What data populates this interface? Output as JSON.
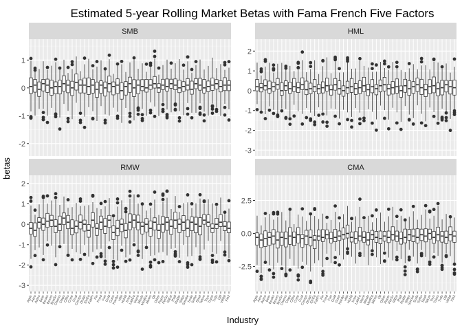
{
  "chart_data": {
    "type": "boxplot",
    "title": "Estimated 5-year Rolling Market Betas with Fama French Five Factors",
    "xlabel": "Industry",
    "ylabel": "betas",
    "categories": [
      "Agric",
      "Aero",
      "Autos",
      "Beer",
      "Books",
      "Boxes",
      "BusSv",
      "Chems",
      "Chips",
      "Clths",
      "Cnstr",
      "Coal",
      "Comps",
      "Drugs",
      "ElcEq",
      "FabPr",
      "Fin",
      "Food",
      "Fun",
      "Gold",
      "Guns",
      "Hardw",
      "Hlth",
      "Hshld",
      "Insur",
      "LabEq",
      "Mach",
      "Meals",
      "MedEq",
      "Mines",
      "Oil",
      "Other",
      "Paper",
      "PerSv",
      "RlEst",
      "Rtail",
      "Rubbr",
      "Ships",
      "Smoke",
      "Soda",
      "Softw",
      "Steel",
      "Telcm",
      "Toys",
      "Trans",
      "Txtls",
      "Util",
      "Whlsl",
      "Fin2"
    ],
    "panels": [
      {
        "name": "SMB",
        "ylim": [
          -2.45,
          1.75
        ],
        "yticks": [
          -2,
          -1,
          0,
          1
        ],
        "series": {
          "medians": [
            0.05,
            0.1,
            -0.05,
            0.15,
            0.1,
            0.0,
            0.05,
            0.05,
            0.15,
            0.1,
            0.0,
            0.2,
            0.1,
            0.1,
            0.05,
            0.1,
            -0.05,
            0.1,
            0.0,
            0.15,
            0.05,
            0.1,
            -0.1,
            0.05,
            0.15,
            0.0,
            0.1,
            0.05,
            0.0,
            0.1,
            0.15,
            0.0,
            0.1,
            0.05,
            0.15,
            0.1,
            0.0,
            0.05,
            0.1,
            -0.05,
            0.15,
            0.1,
            0.0,
            0.05,
            0.1,
            0.15,
            0.05,
            0.1,
            0.1
          ]
        }
      },
      {
        "name": "HML",
        "ylim": [
          -3.3,
          2.6
        ],
        "yticks": [
          -3,
          -2,
          -1,
          0,
          1,
          2
        ],
        "series": {
          "medians": [
            0.2,
            0.15,
            0.25,
            0.1,
            0.2,
            0.3,
            0.0,
            0.25,
            0.1,
            0.2,
            0.15,
            0.3,
            0.05,
            0.1,
            0.2,
            0.1,
            0.15,
            0.25,
            0.05,
            0.3,
            0.1,
            0.0,
            0.15,
            0.2,
            0.1,
            0.15,
            0.25,
            0.05,
            0.2,
            0.1,
            0.25,
            0.3,
            0.1,
            0.15,
            0.2,
            0.0,
            0.25,
            0.1,
            0.2,
            0.3,
            0.15,
            0.05,
            0.2,
            0.25,
            0.1,
            0.15,
            0.3,
            0.2,
            0.15
          ]
        }
      },
      {
        "name": "RMW",
        "ylim": [
          -3.3,
          2.4
        ],
        "yticks": [
          -3,
          -2,
          -1,
          0,
          1,
          2
        ],
        "series": {
          "medians": [
            -0.2,
            -0.3,
            0.1,
            0.0,
            0.15,
            0.2,
            -0.1,
            0.0,
            0.3,
            0.1,
            -0.2,
            -0.1,
            0.1,
            0.0,
            -0.3,
            0.2,
            -0.2,
            0.1,
            -0.1,
            0.2,
            -0.4,
            -0.2,
            0.0,
            -0.3,
            0.1,
            0.2,
            0.1,
            -0.1,
            0.0,
            -0.2,
            0.1,
            -0.3,
            0.0,
            0.1,
            -0.1,
            0.2,
            0.0,
            0.1,
            -0.2,
            0.1,
            0.0,
            -0.1,
            0.2,
            0.1,
            -0.2,
            0.0,
            0.1,
            -0.1,
            -0.2
          ]
        }
      },
      {
        "name": "CMA",
        "ylim": [
          -4.4,
          4.4
        ],
        "yticks": [
          -2.5,
          0.0,
          2.5
        ],
        "series": {
          "medians": [
            -0.3,
            -0.5,
            -0.4,
            -0.3,
            -0.2,
            -0.5,
            -0.3,
            -0.4,
            -0.2,
            -0.3,
            -0.1,
            -0.4,
            -0.2,
            -0.3,
            -0.5,
            -0.2,
            -0.3,
            -0.1,
            -0.4,
            -0.3,
            -0.2,
            -0.1,
            0.0,
            -0.3,
            -0.4,
            -0.2,
            -0.3,
            -0.5,
            -0.1,
            -0.3,
            -0.4,
            -0.2,
            -0.3,
            -0.1,
            -0.2,
            -0.4,
            -0.3,
            -0.1,
            -0.2,
            -0.3,
            -0.1,
            -0.2,
            0.0,
            -0.3,
            -0.1,
            -0.2,
            -0.3,
            -0.1,
            -0.2
          ]
        }
      }
    ]
  }
}
